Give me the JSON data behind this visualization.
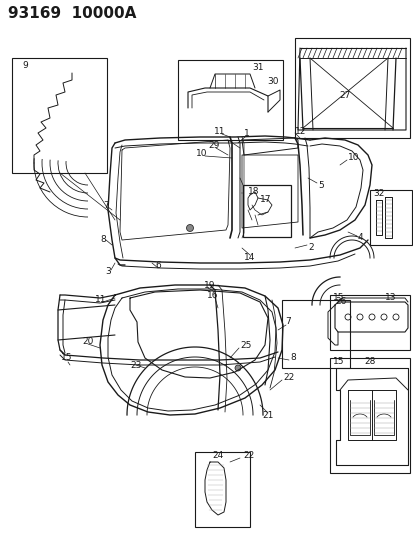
{
  "title": "93169  10000A",
  "bg_color": "#ffffff",
  "line_color": "#1a1a1a",
  "fig_width": 4.14,
  "fig_height": 5.33,
  "dpi": 100,
  "lfs": 6.5,
  "lfs_title": 11
}
